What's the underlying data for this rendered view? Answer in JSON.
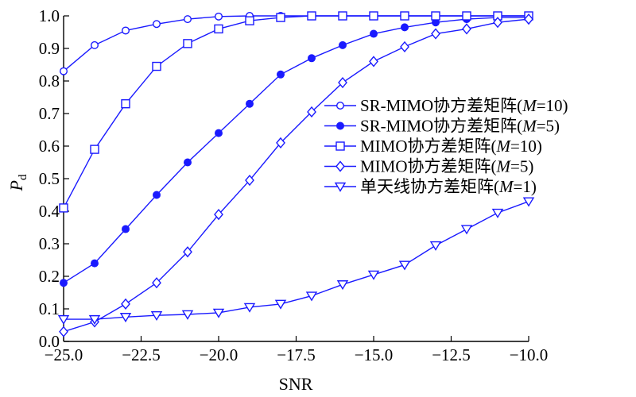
{
  "chart_data": {
    "type": "line",
    "xlabel": "SNR",
    "ylabel": "P",
    "ylabel_sub": "d",
    "xlim": [
      -25,
      -10
    ],
    "ylim": [
      0,
      1
    ],
    "xticks": [
      -25,
      -22.5,
      -20,
      -17.5,
      -15,
      -12.5,
      -10
    ],
    "xtick_labels": [
      "−25.0",
      "−22.5",
      "−20.0",
      "−17.5",
      "−15.0",
      "−12.5",
      "−10.0"
    ],
    "yticks": [
      0,
      0.1,
      0.2,
      0.3,
      0.4,
      0.5,
      0.6,
      0.7,
      0.8,
      0.9,
      1.0
    ],
    "ytick_labels": [
      "0.0",
      "0.1",
      "0.2",
      "0.3",
      "0.4",
      "0.5",
      "0.6",
      "0.7",
      "0.8",
      "0.9",
      "1.0"
    ],
    "grid": false,
    "legend_position": "center-right",
    "line_color": "#1a1aff",
    "x": [
      -25,
      -24,
      -23,
      -22,
      -21,
      -20,
      -19,
      -18,
      -17,
      -16,
      -15,
      -14,
      -13,
      -12,
      -11,
      -10
    ],
    "series": [
      {
        "name": "SR-MIMO协方差矩阵(M=10)",
        "legend_parts": [
          "SR-MIMO协方差矩阵(",
          "M",
          "=10)"
        ],
        "marker": "circle-open",
        "values": [
          0.83,
          0.91,
          0.955,
          0.975,
          0.99,
          0.998,
          1.0,
          1.0,
          1.0,
          1.0,
          1.0,
          1.0,
          1.0,
          1.0,
          1.0,
          1.0
        ]
      },
      {
        "name": "SR-MIMO协方差矩阵(M=5)",
        "legend_parts": [
          "SR-MIMO协方差矩阵(",
          "M",
          "=5)"
        ],
        "marker": "circle-filled",
        "values": [
          0.18,
          0.24,
          0.345,
          0.45,
          0.55,
          0.64,
          0.73,
          0.82,
          0.87,
          0.91,
          0.945,
          0.965,
          0.98,
          0.99,
          0.995,
          0.995
        ]
      },
      {
        "name": "MIMO协方差矩阵(M=10)",
        "legend_parts": [
          "MIMO协方差矩阵(",
          "M",
          "=10)"
        ],
        "marker": "square-open",
        "values": [
          0.41,
          0.59,
          0.73,
          0.845,
          0.915,
          0.96,
          0.985,
          0.995,
          1.0,
          1.0,
          1.0,
          1.0,
          1.0,
          1.0,
          1.0,
          1.0
        ]
      },
      {
        "name": "MIMO协方差矩阵(M=5)",
        "legend_parts": [
          "MIMO协方差矩阵(",
          "M",
          "=5)"
        ],
        "marker": "diamond-open",
        "values": [
          0.03,
          0.06,
          0.115,
          0.18,
          0.275,
          0.39,
          0.495,
          0.61,
          0.705,
          0.795,
          0.86,
          0.905,
          0.945,
          0.96,
          0.98,
          0.99
        ]
      },
      {
        "name": "单天线协方差矩阵(M=1)",
        "legend_parts": [
          "单天线协方差矩阵(",
          "M",
          "=1)"
        ],
        "marker": "triangle-down-open",
        "values": [
          0.068,
          0.068,
          0.075,
          0.08,
          0.083,
          0.088,
          0.105,
          0.115,
          0.14,
          0.175,
          0.205,
          0.235,
          0.295,
          0.345,
          0.395,
          0.43
        ]
      }
    ]
  }
}
